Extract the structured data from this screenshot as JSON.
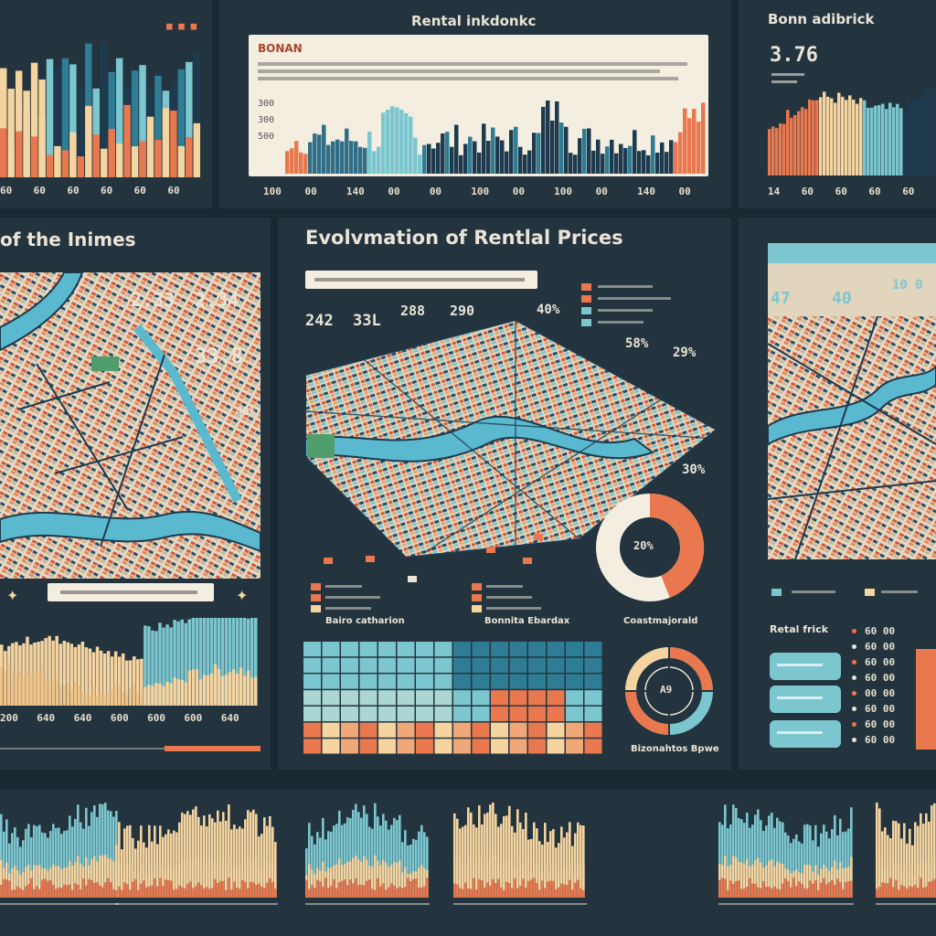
{
  "panels": {
    "top_center_title": "Rental inkdonkc",
    "top_right_title": "Bonn adibrick",
    "top_right_value": "3.76",
    "card_heading": "BONAN",
    "mid_left_title": "of the  Inimes",
    "mid_center_title": "Evolvmation of Rentlal Prices",
    "rental_label": "Retal frick"
  },
  "top_left_ticks": [
    "60",
    "60",
    "60",
    "60",
    "60",
    "60"
  ],
  "top_center_y_ticks": [
    "300",
    "300",
    "500"
  ],
  "top_center_x_ticks": [
    "100",
    "00",
    "140",
    "00",
    "00",
    "100",
    "00",
    "100",
    "00",
    "140",
    "00"
  ],
  "top_right_x_ticks": [
    "14",
    "60",
    "60",
    "60",
    "60"
  ],
  "left_map_values": [
    "2.33",
    "2.34",
    "33.8",
    "40%"
  ],
  "center_map_values": [
    "242",
    "33L",
    "288",
    "290",
    "40%",
    "58%",
    "29%",
    "30%"
  ],
  "donut_label": "20%",
  "right_map_values": [
    "47",
    "40",
    "10 0"
  ],
  "bottom_left_ticks": [
    "200",
    "640",
    "640",
    "600",
    "600",
    "600",
    "640"
  ],
  "heatmap_headers": [
    "Bairo catharion",
    "Bonnita Ebardax"
  ],
  "gauge_label": "Coastmajorald",
  "gauge_footer": "Bizonahtos Bpwe",
  "gauge_center": "A9",
  "rental_rows": [
    "60 00",
    "60 00",
    "60 00",
    "60 00",
    "00 00",
    "60 00",
    "60 00",
    "60 00"
  ],
  "colors": {
    "bg": "#23343f",
    "orange": "#e9784f",
    "cream": "#f5d4a0",
    "teal": "#7cc7cf",
    "navy": "#1d3a4e",
    "paper": "#f4eee1",
    "river": "#5bb9cf"
  }
}
